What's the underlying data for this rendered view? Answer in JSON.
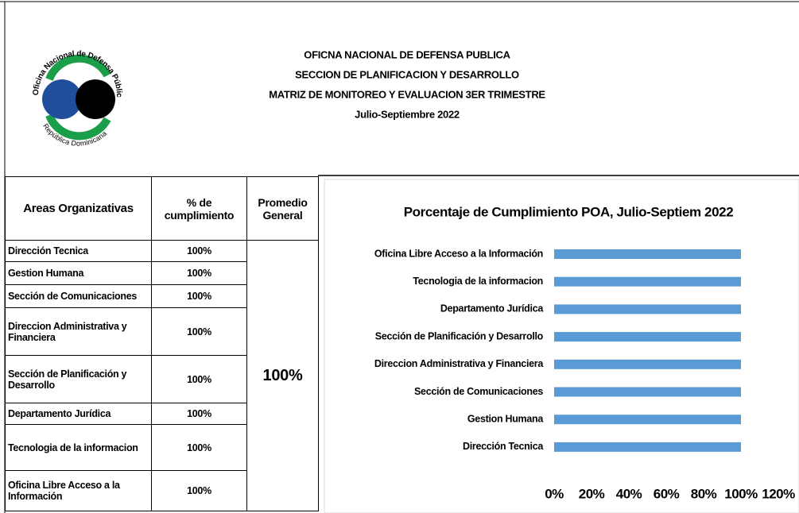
{
  "logo": {
    "top_text": "Oficina Nacional de Defensa Pública",
    "bottom_text": "República Dominicana"
  },
  "header": {
    "lines": [
      "OFICNA NACIONAL DE DEFENSA PUBLICA",
      "SECCION DE PLANIFICACION Y DESARROLLO",
      "MATRIZ DE MONITOREO Y EVALUACION 3ER TRIMESTRE",
      "Julio-Septiembre 2022"
    ]
  },
  "table": {
    "columns": [
      "Areas Organizativas",
      "% de cumplimiento",
      "Promedio General"
    ],
    "rows": [
      [
        "Dirección Tecnica",
        "100%"
      ],
      [
        "Gestion Humana",
        "100%"
      ],
      [
        "Sección de Comunicaciones",
        "100%"
      ],
      [
        "Direccion Administrativa y Financiera",
        "100%"
      ],
      [
        "Sección de Planificación y Desarrollo",
        "100%"
      ],
      [
        "Departamento Jurídica",
        "100%"
      ],
      [
        "Tecnologia de la informacion",
        "100%"
      ],
      [
        "Oficina Libre Acceso a la Información",
        "100%"
      ]
    ],
    "average": "100%"
  },
  "chart_data": {
    "type": "bar",
    "orientation": "horizontal",
    "title": "Porcentaje de Cumplimiento POA, Julio-Septiem 2022",
    "categories": [
      "Dirección Tecnica",
      "Gestion Humana",
      "Sección de Comunicaciones",
      "Direccion Administrativa y Financiera",
      "Sección de Planificación y Desarrollo",
      "Departamento Jurídica",
      "Tecnologia de la informacion",
      "Oficina Libre Acceso a la Información"
    ],
    "values": [
      100,
      100,
      100,
      100,
      100,
      100,
      100,
      100
    ],
    "color": "#5b9bd5",
    "xlim": [
      0,
      120
    ],
    "xticks": [
      {
        "value": 0,
        "label": "0%"
      },
      {
        "value": 20,
        "label": "20%"
      },
      {
        "value": 40,
        "label": "40%"
      },
      {
        "value": 60,
        "label": "60%"
      },
      {
        "value": 80,
        "label": "80%"
      },
      {
        "value": 100,
        "label": "100%"
      },
      {
        "value": 120,
        "label": "120%"
      }
    ]
  }
}
